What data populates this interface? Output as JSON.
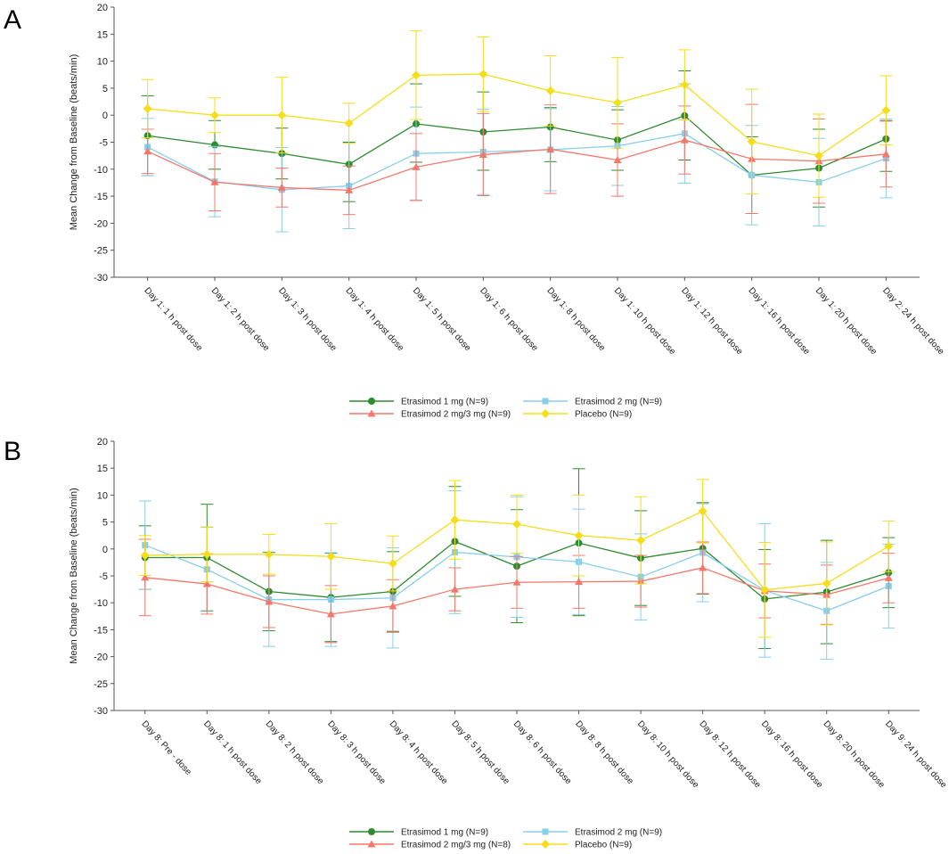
{
  "colors": {
    "etr1": "#2e8b2e",
    "etr2": "#87ceeb",
    "etr23": "#f4786a",
    "placebo": "#f5dd1a",
    "axis": "#555555"
  },
  "chart_data": [
    {
      "type": "line",
      "panel_label": "A",
      "ylabel": "Mean Change from Baseline (beats/min)",
      "ylim": [
        -30,
        20
      ],
      "yticks": [
        20,
        15,
        10,
        5,
        0,
        -5,
        -10,
        -15,
        -20,
        -25,
        -30
      ],
      "ytick_labels": [
        "20",
        "15",
        "10",
        "5",
        "0",
        "-5",
        "-10",
        "-15",
        "-20",
        "-25",
        "-30"
      ],
      "categories": [
        "Day 1: 1 h post dose",
        "Day 1: 2 h post dose",
        "Day 1: 3 h post dose",
        "Day 1: 4 h post dose",
        "Day 1: 5 h post dose",
        "Day 1: 6 h post dose",
        "Day 1: 8 h post dose",
        "Day 1: 10 h post dose",
        "Day 1: 12 h post dose",
        "Day 1: 16 h post dose",
        "Day 1: 20 h post dose",
        "Day 2: 24 h post dose"
      ],
      "series": [
        {
          "key": "etr1",
          "name": "Etrasimod 1 mg (N=9)",
          "marker": "circle",
          "values": [
            -3.8,
            -5.5,
            -7.1,
            -9.1,
            -1.6,
            -3.1,
            -2.2,
            -4.6,
            -0.1,
            -11.1,
            -9.8,
            -4.4
          ],
          "lower": [
            -11.2,
            -10.0,
            -11.8,
            -16.0,
            -8.7,
            -10.2,
            -8.6,
            -10.2,
            -8.3,
            -18.2,
            -17.0,
            -10.4
          ],
          "upper": [
            3.6,
            -1.0,
            -2.4,
            -5.0,
            5.8,
            4.3,
            1.4,
            1.0,
            8.2,
            -4.0,
            -2.6,
            -1.0
          ]
        },
        {
          "key": "etr2",
          "name": "Etrasimod 2 mg (N=9)",
          "marker": "square",
          "values": [
            -5.9,
            -12.3,
            -13.8,
            -13.1,
            -7.1,
            -6.8,
            -6.4,
            -5.7,
            -3.4,
            -11.1,
            -12.4,
            -8.0
          ],
          "lower": [
            -11.2,
            -18.8,
            -21.6,
            -21.0,
            -15.7,
            -14.7,
            -14.0,
            -13.0,
            -12.6,
            -20.3,
            -20.5,
            -15.3
          ],
          "upper": [
            -0.6,
            -5.8,
            -6.0,
            -5.2,
            1.5,
            1.1,
            1.2,
            1.6,
            5.8,
            -1.9,
            -4.3,
            -0.7
          ]
        },
        {
          "key": "etr23",
          "name": "Etrasimod 2 mg/3 mg (N=9)",
          "marker": "triangle",
          "values": [
            -6.7,
            -12.4,
            -13.4,
            -13.9,
            -9.6,
            -7.3,
            -6.3,
            -8.3,
            -4.6,
            -8.1,
            -8.5,
            -7.2
          ],
          "lower": [
            -10.8,
            -17.7,
            -17.0,
            -18.4,
            -15.8,
            -14.9,
            -14.5,
            -15.0,
            -10.9,
            -18.2,
            -16.3,
            -13.3
          ],
          "upper": [
            -2.6,
            -7.1,
            -9.8,
            -9.4,
            -3.4,
            0.3,
            1.9,
            -1.6,
            1.7,
            2.0,
            -0.7,
            -1.1
          ]
        },
        {
          "key": "placebo",
          "name": "Placebo (N=9)",
          "marker": "diamond",
          "values": [
            1.2,
            0.0,
            0.0,
            -1.5,
            7.4,
            7.6,
            4.5,
            2.3,
            5.6,
            -4.9,
            -7.5,
            0.9
          ],
          "lower": [
            -4.2,
            -3.2,
            -7.0,
            -5.2,
            -0.8,
            0.7,
            -2.0,
            -6.1,
            -0.9,
            -14.6,
            -15.2,
            -5.5
          ],
          "upper": [
            6.6,
            3.2,
            7.0,
            2.2,
            15.6,
            14.5,
            11.0,
            10.7,
            12.1,
            4.8,
            0.2,
            7.3
          ]
        }
      ],
      "legend_order": [
        "etr1",
        "etr2",
        "etr23",
        "placebo"
      ]
    },
    {
      "type": "line",
      "panel_label": "B",
      "ylabel": "Mean Change from Baseline (beats/min)",
      "ylim": [
        -30,
        20
      ],
      "yticks": [
        20,
        15,
        10,
        5,
        0,
        -5,
        -10,
        -15,
        -20,
        -25,
        -30
      ],
      "ytick_labels": [
        "20",
        "15",
        "10",
        "5",
        "0",
        "-5",
        "-10",
        "-15",
        "-20",
        "-25",
        "-30"
      ],
      "categories": [
        "Day 8: Pre - dose",
        "Day 8: 1 h post dose",
        "Day 8: 2 h post dose",
        "Day 8: 3 h post dose",
        "Day 8: 4 h post dose",
        "Day 8: 5 h post dose",
        "Day 8: 6 h post dose",
        "Day 8: 8 h post dose",
        "Day 8: 10 h post dose",
        "Day 8: 12 h post dose",
        "Day 8: 16 h post dose",
        "Day 8: 20 h post dose",
        "Day 9: 24 h post dose"
      ],
      "series": [
        {
          "key": "etr1",
          "name": "Etrasimod 1 mg (N=9)",
          "marker": "circle",
          "values": [
            -1.6,
            -1.6,
            -7.9,
            -9.0,
            -7.9,
            1.4,
            -3.2,
            1.1,
            -1.7,
            0.1,
            -9.3,
            -8.0,
            -4.4
          ],
          "lower": [
            -7.5,
            -11.5,
            -15.2,
            -17.2,
            -15.3,
            -8.8,
            -13.7,
            -12.4,
            -10.5,
            -8.4,
            -18.5,
            -17.6,
            -10.9
          ],
          "upper": [
            4.3,
            8.3,
            -0.6,
            -0.8,
            -0.5,
            11.6,
            7.3,
            14.9,
            7.1,
            8.6,
            -0.1,
            1.6,
            2.1
          ]
        },
        {
          "key": "etr2",
          "name": "Etrasimod 2 mg (N=9)",
          "marker": "square",
          "values": [
            0.7,
            -3.8,
            -9.4,
            -9.4,
            -9.1,
            -0.6,
            -1.5,
            -2.4,
            -5.2,
            -0.7,
            -7.7,
            -11.5,
            -6.9
          ],
          "lower": [
            -7.5,
            -11.6,
            -18.1,
            -18.1,
            -18.4,
            -12.0,
            -12.7,
            -12.2,
            -13.2,
            -9.8,
            -20.1,
            -20.5,
            -14.7
          ],
          "upper": [
            8.9,
            4.0,
            -0.7,
            -0.7,
            0.2,
            10.8,
            9.7,
            7.4,
            2.8,
            8.4,
            4.7,
            -2.5,
            0.9
          ]
        },
        {
          "key": "etr23",
          "name": "Etrasimod 2 mg/3 mg (N=8)",
          "marker": "triangle",
          "values": [
            -5.3,
            -6.5,
            -9.8,
            -12.1,
            -10.6,
            -7.5,
            -6.2,
            -6.1,
            -6.0,
            -3.5,
            -7.8,
            -8.5,
            -5.4
          ],
          "lower": [
            -12.4,
            -12.1,
            -14.6,
            -17.4,
            -15.5,
            -11.5,
            -11.0,
            -11.0,
            -10.8,
            -8.3,
            -12.8,
            -14.0,
            -10.0
          ],
          "upper": [
            1.8,
            -0.9,
            -5.0,
            -6.8,
            -5.7,
            -3.5,
            -1.4,
            -1.2,
            -1.2,
            1.3,
            -2.8,
            -3.0,
            -0.8
          ]
        },
        {
          "key": "placebo",
          "name": "Placebo (N=9)",
          "marker": "diamond",
          "values": [
            -1.2,
            -1.0,
            -1.0,
            -1.4,
            -2.7,
            5.4,
            4.6,
            2.5,
            1.6,
            7.0,
            -7.6,
            -6.4,
            0.5
          ],
          "lower": [
            -4.9,
            -6.1,
            -4.7,
            -7.5,
            -7.8,
            -1.9,
            -0.8,
            -5.0,
            -6.5,
            1.1,
            -16.4,
            -14.1,
            -4.2
          ],
          "upper": [
            2.5,
            4.1,
            2.7,
            4.7,
            2.4,
            12.7,
            10.0,
            10.0,
            9.7,
            12.9,
            1.2,
            1.3,
            5.2
          ]
        }
      ],
      "legend_order": [
        "etr1",
        "etr2",
        "etr23",
        "placebo"
      ]
    }
  ]
}
